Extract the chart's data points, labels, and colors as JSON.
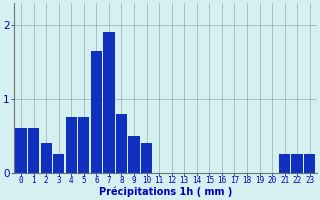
{
  "hours": [
    0,
    1,
    2,
    3,
    4,
    5,
    6,
    7,
    8,
    9,
    10,
    11,
    12,
    13,
    14,
    15,
    16,
    17,
    18,
    19,
    20,
    21,
    22,
    23
  ],
  "values": [
    0.6,
    0.6,
    0.4,
    0.25,
    0.75,
    0.75,
    1.65,
    1.9,
    0.8,
    0.5,
    0.4,
    0,
    0,
    0,
    0,
    0,
    0,
    0,
    0,
    0,
    0,
    0.25,
    0.25,
    0.25
  ],
  "bar_color": "#1030c0",
  "background_color": "#d4f0f0",
  "grid_color": "#a0b8b8",
  "axis_label_color": "#0000bb",
  "tick_color": "#0000bb",
  "xlabel": "Précipitations 1h ( mm )",
  "ylim": [
    0,
    2.3
  ],
  "yticks": [
    0,
    1,
    2
  ],
  "xlabel_fontsize": 7,
  "tick_fontsize": 5.5
}
